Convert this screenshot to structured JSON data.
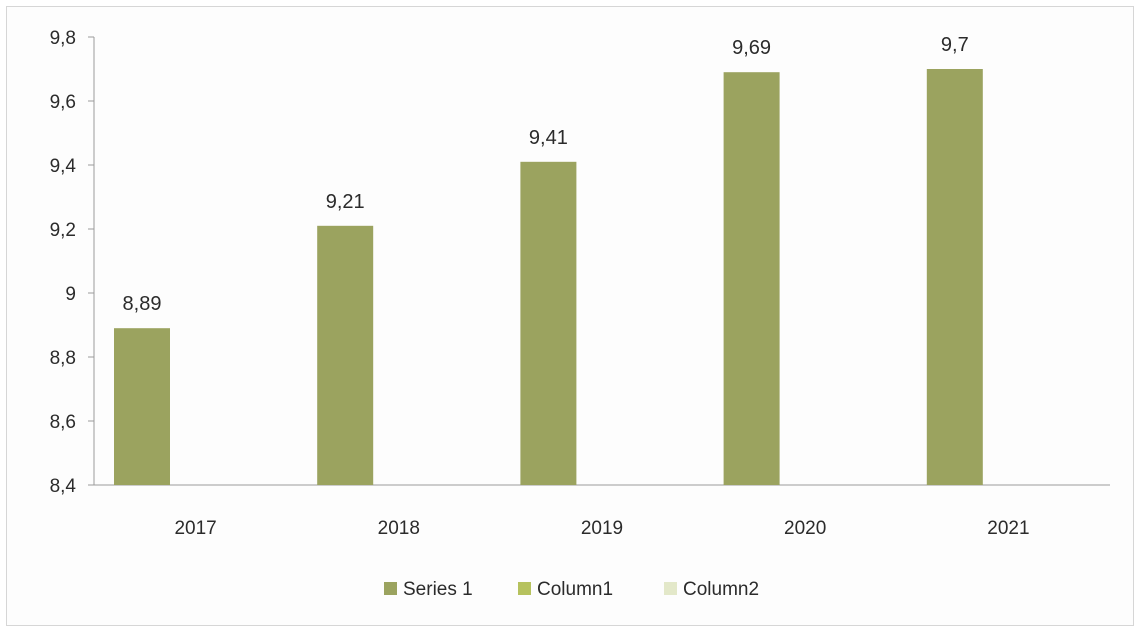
{
  "chart_data": {
    "type": "bar",
    "categories": [
      "2017",
      "2018",
      "2019",
      "2020",
      "2021"
    ],
    "series": [
      {
        "name": "Series 1",
        "values": [
          8.89,
          9.21,
          9.41,
          9.69,
          9.7
        ],
        "color": "#9ba35f"
      },
      {
        "name": "Column1",
        "values": [
          null,
          null,
          null,
          null,
          null
        ],
        "color": "#b6c25e"
      },
      {
        "name": "Column2",
        "values": [
          null,
          null,
          null,
          null,
          null
        ],
        "color": "#e3e8c9"
      }
    ],
    "data_labels": [
      "8,89",
      "9,21",
      "9,41",
      "9,69",
      "9,7"
    ],
    "y_ticks": [
      {
        "value": 8.4,
        "label": "8,4"
      },
      {
        "value": 8.6,
        "label": "8,6"
      },
      {
        "value": 8.8,
        "label": "8,8"
      },
      {
        "value": 9.0,
        "label": "9"
      },
      {
        "value": 9.2,
        "label": "9,2"
      },
      {
        "value": 9.4,
        "label": "9,4"
      },
      {
        "value": 9.6,
        "label": "9,6"
      },
      {
        "value": 9.8,
        "label": "9,8"
      }
    ],
    "ylim": [
      8.4,
      9.8
    ],
    "grid": false,
    "legend_position": "bottom",
    "title": "",
    "xlabel": "",
    "ylabel": ""
  }
}
